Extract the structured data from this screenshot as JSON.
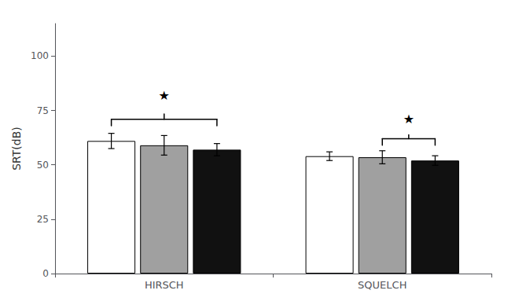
{
  "chart_data": {
    "type": "bar",
    "categories": [
      "HIRSCH",
      "SQUELCH"
    ],
    "series": [
      {
        "color": "white",
        "values": [
          61.0,
          54.0
        ],
        "errors": [
          3.5,
          2.0
        ]
      },
      {
        "color": "#a0a0a0",
        "values": [
          59.0,
          53.5
        ],
        "errors": [
          4.5,
          3.0
        ]
      },
      {
        "color": "#111111",
        "values": [
          57.0,
          52.0
        ],
        "errors": [
          2.8,
          2.2
        ]
      }
    ],
    "ylabel": "SRT(dB)",
    "ylim": [
      0,
      115
    ],
    "yticks": [
      0,
      25,
      50,
      75,
      100
    ],
    "grid": false,
    "annotations": [
      {
        "text": "★",
        "category": "HIRSCH",
        "from_series": 0,
        "to_series": 2,
        "y": 71,
        "text_y": 79
      },
      {
        "text": "★",
        "category": "SQUELCH",
        "from_series": 1,
        "to_series": 2,
        "y": 62,
        "text_y": 68
      }
    ]
  }
}
